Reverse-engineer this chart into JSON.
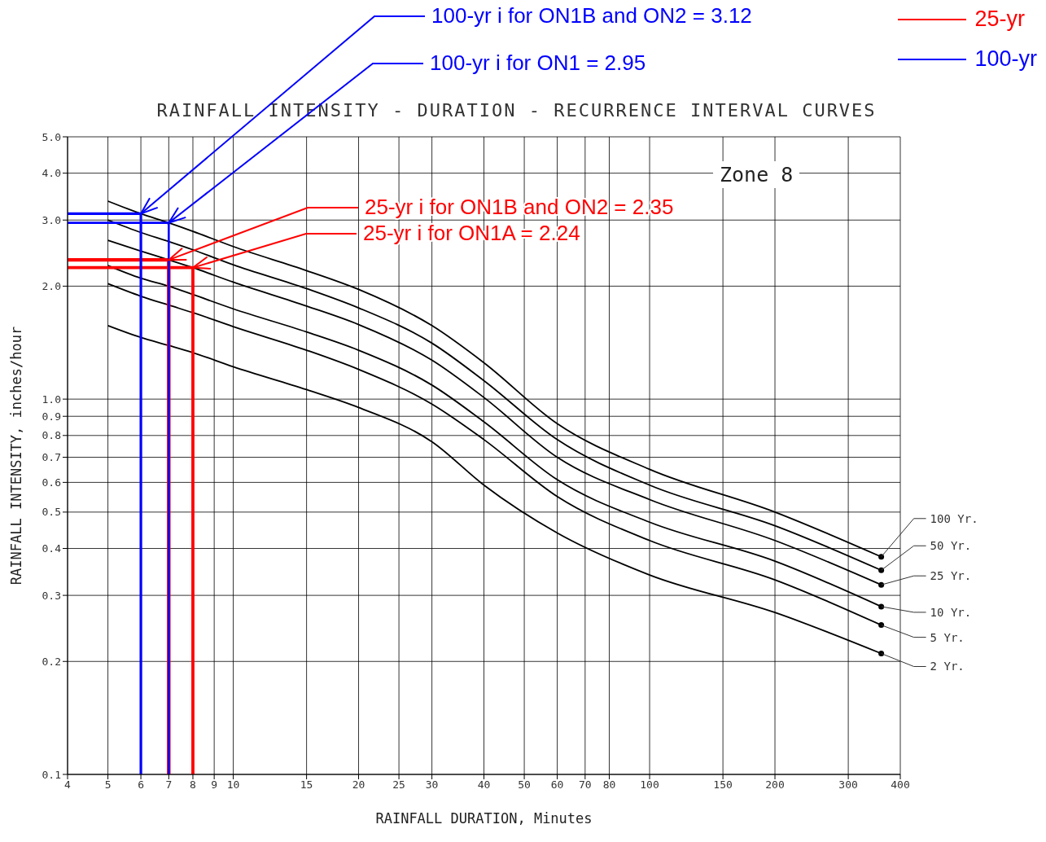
{
  "chart_data": {
    "type": "line",
    "title": "RAINFALL INTENSITY - DURATION - RECURRENCE INTERVAL CURVES",
    "xlabel": "RAINFALL DURATION, Minutes",
    "ylabel": "RAINFALL INTENSITY, inches/hour",
    "log": "xy",
    "grid": true,
    "legend": "top right",
    "xlim": [
      4,
      400
    ],
    "xticks": [
      4,
      5,
      6,
      7,
      8,
      9,
      10,
      15,
      20,
      25,
      30,
      40,
      50,
      60,
      70,
      80,
      100,
      150,
      200,
      300,
      400
    ],
    "ylim": [
      0.1,
      5
    ],
    "yticks": [
      0.1,
      0.2,
      0.3,
      0.4,
      0.5,
      0.6,
      0.7,
      0.8,
      0.9,
      {
        "value": 1,
        "label": "1.0"
      },
      {
        "value": 2,
        "label": "2.0"
      },
      {
        "value": 3,
        "label": "3.0"
      },
      {
        "value": 4,
        "label": "4.0"
      },
      {
        "value": 5,
        "label": "5.0"
      }
    ],
    "series": [
      {
        "name": "100 Yr.",
        "color": "#000000",
        "x": [
          5,
          6,
          7,
          8,
          10,
          15,
          20,
          30,
          40,
          60,
          100,
          200,
          360
        ],
        "values": [
          3.37,
          3.12,
          2.95,
          2.8,
          2.55,
          2.2,
          1.96,
          1.57,
          1.25,
          0.86,
          0.65,
          0.5,
          0.38
        ]
      },
      {
        "name": "50 Yr.",
        "color": "#000000",
        "x": [
          5,
          6,
          7,
          8,
          10,
          15,
          20,
          30,
          40,
          60,
          100,
          200,
          360
        ],
        "values": [
          3.0,
          2.78,
          2.63,
          2.5,
          2.28,
          1.97,
          1.75,
          1.41,
          1.12,
          0.78,
          0.59,
          0.46,
          0.35
        ]
      },
      {
        "name": "25 Yr.",
        "color": "#000000",
        "x": [
          5,
          6,
          7,
          8,
          10,
          15,
          20,
          30,
          40,
          60,
          100,
          200,
          360
        ],
        "values": [
          2.65,
          2.48,
          2.35,
          2.24,
          2.05,
          1.77,
          1.58,
          1.27,
          1.01,
          0.7,
          0.54,
          0.42,
          0.32
        ]
      },
      {
        "name": "10 Yr.",
        "color": "#000000",
        "x": [
          5,
          6,
          7,
          8,
          10,
          15,
          20,
          30,
          40,
          60,
          100,
          200,
          360
        ],
        "values": [
          2.27,
          2.1,
          2.0,
          1.9,
          1.74,
          1.51,
          1.35,
          1.09,
          0.87,
          0.61,
          0.47,
          0.37,
          0.28
        ]
      },
      {
        "name": "5 Yr.",
        "color": "#000000",
        "x": [
          5,
          6,
          7,
          8,
          10,
          15,
          20,
          30,
          40,
          60,
          100,
          200,
          360
        ],
        "values": [
          2.03,
          1.88,
          1.78,
          1.7,
          1.56,
          1.35,
          1.2,
          0.97,
          0.78,
          0.55,
          0.42,
          0.33,
          0.25
        ]
      },
      {
        "name": "2 Yr.",
        "color": "#000000",
        "x": [
          5,
          6,
          7,
          8,
          10,
          15,
          20,
          30,
          40,
          60,
          100,
          200,
          360
        ],
        "values": [
          1.57,
          1.46,
          1.39,
          1.33,
          1.22,
          1.06,
          0.95,
          0.77,
          0.59,
          0.44,
          0.34,
          0.27,
          0.21
        ]
      },
      {
        "name": "25-yr",
        "type": "line",
        "color": "#ff0000",
        "x": [
          4,
          7,
          7
        ],
        "values": [
          2.35,
          2.35,
          0.1
        ]
      },
      {
        "type": "line",
        "color": "#ff0000",
        "x": [
          4,
          8,
          8
        ],
        "values": [
          2.24,
          2.24,
          0.1
        ]
      },
      {
        "name": "100-yr",
        "type": "line",
        "color": "#0000ff",
        "x": [
          4,
          6,
          6
        ],
        "values": [
          3.12,
          3.12,
          0.1
        ]
      },
      {
        "type": "line",
        "color": "#0000ff",
        "x": [
          4,
          7,
          7
        ],
        "values": [
          2.95,
          2.95,
          0.1
        ]
      }
    ],
    "annotations": [
      {
        "text": "100-yr i for ON1B and ON2 = 3.12",
        "x": 6,
        "y": 3.12
      },
      {
        "text": "100-yr i for ON1 = 2.95",
        "x": 7,
        "y": 2.95
      },
      {
        "text": "25-yr i for ON1B and ON2 = 2.35",
        "x": 7,
        "y": 2.35
      },
      {
        "text": "25-yr i for ON1A = 2.24",
        "x": 8,
        "y": 2.24
      },
      "Zone 8"
    ]
  }
}
